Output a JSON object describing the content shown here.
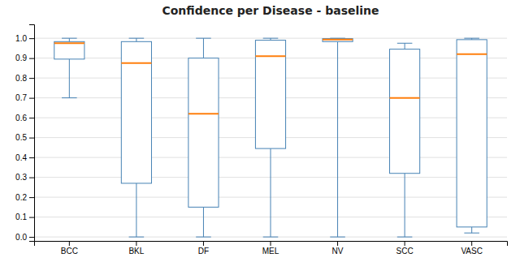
{
  "chart_data": {
    "type": "box",
    "title": "Confidence per Disease - baseline",
    "categories": [
      "BCC",
      "BKL",
      "DF",
      "MEL",
      "NV",
      "SCC",
      "VASC"
    ],
    "whislo": [
      0.7,
      0.0,
      0.0,
      0.0,
      0.0,
      0.0,
      0.02
    ],
    "q1": [
      0.895,
      0.27,
      0.15,
      0.445,
      0.983,
      0.32,
      0.05
    ],
    "median": [
      0.975,
      0.875,
      0.62,
      0.91,
      0.993,
      0.7,
      0.92
    ],
    "q3": [
      0.983,
      0.983,
      0.9,
      0.99,
      0.998,
      0.945,
      0.993
    ],
    "whishi": [
      1.0,
      1.0,
      1.0,
      1.0,
      1.0,
      0.975,
      1.0
    ],
    "ylim": [
      -0.02,
      1.07
    ],
    "yticks": [
      {
        "value": 0.0,
        "label": "0.0"
      },
      0.1,
      0.2,
      0.3,
      0.4,
      0.5,
      0.6,
      0.7,
      0.8,
      0.9,
      {
        "value": 1.0,
        "label": "1.0"
      }
    ],
    "grid": true
  }
}
